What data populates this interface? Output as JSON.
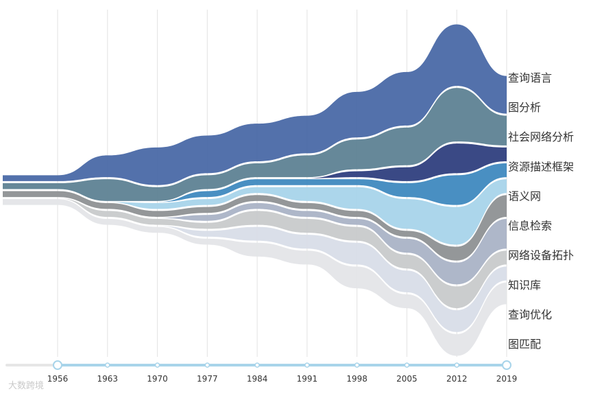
{
  "chart_data": {
    "type": "streamgraph",
    "title": "",
    "xlabel": "",
    "ylabel": "",
    "x": [
      1956,
      1963,
      1970,
      1977,
      1984,
      1991,
      1998,
      2005,
      2012,
      2019
    ],
    "ticks": [
      "1956",
      "1963",
      "1970",
      "1977",
      "1984",
      "1991",
      "1998",
      "2005",
      "2012",
      "2019"
    ],
    "series": [
      {
        "name": "查询语言",
        "color": "#4a69a6",
        "values": [
          1,
          3,
          5,
          5,
          5,
          5,
          6,
          7,
          8,
          5
        ]
      },
      {
        "name": "图分析",
        "color": "#5e8293",
        "values": [
          1,
          3,
          2,
          2,
          2,
          3,
          4,
          5,
          7,
          4
        ]
      },
      {
        "name": "社会网络分析",
        "color": "#2f3f7e",
        "values": [
          0,
          0,
          0,
          0,
          0,
          0,
          1,
          2,
          4,
          2
        ]
      },
      {
        "name": "资源描述框架",
        "color": "#3f89bf",
        "values": [
          0,
          0,
          0,
          1,
          1,
          1,
          1,
          2,
          4,
          2
        ]
      },
      {
        "name": "语义网",
        "color": "#a8d4ea",
        "values": [
          0,
          0,
          1,
          1,
          1,
          2,
          3,
          4,
          5,
          2
        ]
      },
      {
        "name": "信息检索",
        "color": "#8e9194",
        "values": [
          1,
          1,
          1,
          1,
          1,
          1,
          1,
          1,
          2,
          3
        ]
      },
      {
        "name": "网络设备拓扑",
        "color": "#aab3c6",
        "values": [
          0,
          0,
          0,
          1,
          1,
          1,
          1,
          2,
          3,
          4
        ]
      },
      {
        "name": "知识库",
        "color": "#c8cacb",
        "values": [
          0,
          1,
          1,
          1,
          2,
          2,
          2,
          2,
          3,
          2
        ]
      },
      {
        "name": "查询优化",
        "color": "#d8dde8",
        "values": [
          0,
          0,
          0,
          1,
          2,
          2,
          3,
          3,
          3,
          2
        ]
      },
      {
        "name": "图匹配",
        "color": "#e4e5e8",
        "values": [
          1,
          1,
          1,
          1,
          2,
          2,
          3,
          2,
          3,
          3
        ]
      }
    ],
    "legend": {
      "position": "right",
      "labels": [
        "查询语言",
        "图分析",
        "社会网络分析",
        "资源描述框架",
        "语义网",
        "信息检索",
        "网络设备拓扑",
        "知识库",
        "查询优化",
        "图匹配"
      ]
    },
    "grid": true,
    "slider": {
      "start": "1956",
      "end": "2019",
      "color": "#a8d4ea"
    }
  },
  "watermark": {
    "text": "大数跨境"
  }
}
